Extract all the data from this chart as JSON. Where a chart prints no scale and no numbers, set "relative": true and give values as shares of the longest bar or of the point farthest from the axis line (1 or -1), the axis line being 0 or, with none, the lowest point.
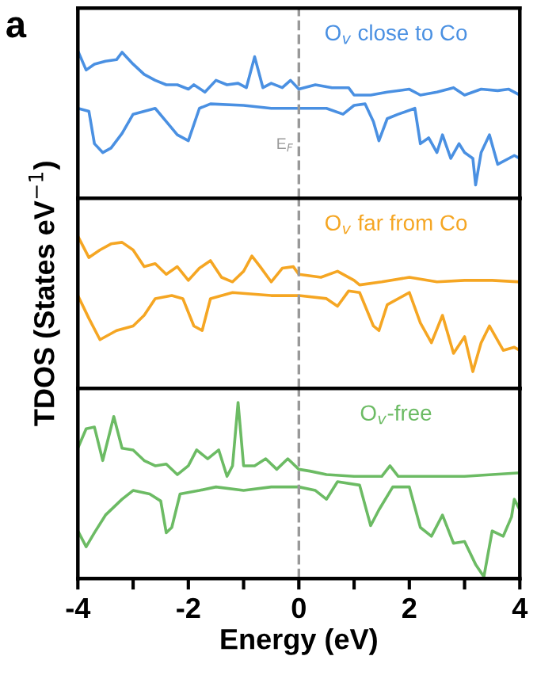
{
  "chart_data": [
    {
      "type": "line",
      "relative": true,
      "xlim": [
        -4,
        4
      ],
      "tick_labels": false,
      "annotations": [
        "a",
        "O$_{v}$ close to Co"
      ],
      "ref_lines": [
        {
          "axis": "x",
          "value": 0,
          "label": "E$_{F}$",
          "color": "#999999",
          "line_style": "dashed"
        }
      ],
      "series": [
        {
          "color": "#4a90e2",
          "x": [
            -4,
            -3.85,
            -3.7,
            -3.5,
            -3.3,
            -3.2,
            -3.0,
            -2.8,
            -2.6,
            -2.4,
            -2.2,
            -2.0,
            -1.9,
            -1.7,
            -1.5,
            -1.3,
            -1.1,
            -0.95,
            -0.8,
            -0.65,
            -0.5,
            -0.3,
            -0.15,
            0,
            0.3,
            0.6,
            0.9,
            1.0,
            1.3,
            1.6,
            2.0,
            2.2,
            2.5,
            2.8,
            3.0,
            3.3,
            3.6,
            3.8,
            4.0
          ],
          "values": [
            1.0,
            0.87,
            0.91,
            0.93,
            0.94,
            0.99,
            0.91,
            0.84,
            0.8,
            0.77,
            0.77,
            0.74,
            0.77,
            0.72,
            0.8,
            0.77,
            0.78,
            0.75,
            0.96,
            0.75,
            0.78,
            0.75,
            0.8,
            0.74,
            0.77,
            0.75,
            0.75,
            0.7,
            0.7,
            0.72,
            0.74,
            0.7,
            0.72,
            0.75,
            0.7,
            0.74,
            0.73,
            0.74,
            0.7
          ]
        },
        {
          "color": "#4a90e2",
          "x": [
            -4,
            -3.8,
            -3.7,
            -3.55,
            -3.4,
            -3.2,
            -3.0,
            -2.8,
            -2.6,
            -2.4,
            -2.2,
            -2.0,
            -1.8,
            -1.6,
            -1.0,
            -0.5,
            0,
            0.5,
            0.8,
            1.0,
            1.2,
            1.35,
            1.45,
            1.6,
            1.8,
            2.1,
            2.2,
            2.35,
            2.5,
            2.6,
            2.75,
            2.9,
            3.0,
            3.15,
            3.2,
            3.3,
            3.45,
            3.6,
            3.8,
            3.9,
            4.0
          ],
          "values": [
            0.61,
            0.59,
            0.37,
            0.31,
            0.34,
            0.44,
            0.57,
            0.59,
            0.61,
            0.52,
            0.43,
            0.39,
            0.61,
            0.64,
            0.63,
            0.61,
            0.61,
            0.61,
            0.57,
            0.63,
            0.64,
            0.52,
            0.39,
            0.54,
            0.57,
            0.61,
            0.37,
            0.41,
            0.31,
            0.43,
            0.27,
            0.37,
            0.31,
            0.27,
            0.09,
            0.31,
            0.43,
            0.23,
            0.27,
            0.29,
            0.27
          ]
        }
      ]
    },
    {
      "type": "line",
      "relative": true,
      "xlim": [
        -4,
        4
      ],
      "tick_labels": false,
      "ylabel": "TDOS (States eV$^{−1}$)",
      "annotations": [
        "O$_{v}$ far from Co"
      ],
      "ref_lines": [
        {
          "axis": "x",
          "value": 0,
          "color": "#999999",
          "line_style": "dashed"
        }
      ],
      "series": [
        {
          "color": "#f5a623",
          "x": [
            -4,
            -3.8,
            -3.6,
            -3.4,
            -3.2,
            -3.0,
            -2.8,
            -2.6,
            -2.4,
            -2.2,
            -2.0,
            -1.8,
            -1.6,
            -1.4,
            -1.2,
            -1.0,
            -0.85,
            -0.7,
            -0.5,
            -0.3,
            -0.1,
            0,
            0.4,
            0.7,
            1.0,
            1.1,
            1.5,
            2.0,
            2.5,
            3.0,
            3.5,
            4.0
          ],
          "values": [
            1.0,
            0.86,
            0.91,
            0.95,
            0.96,
            0.91,
            0.8,
            0.82,
            0.75,
            0.8,
            0.71,
            0.79,
            0.84,
            0.73,
            0.7,
            0.77,
            0.87,
            0.8,
            0.7,
            0.79,
            0.8,
            0.75,
            0.73,
            0.77,
            0.71,
            0.68,
            0.7,
            0.73,
            0.7,
            0.71,
            0.71,
            0.7
          ]
        },
        {
          "color": "#f5a623",
          "x": [
            -4,
            -3.8,
            -3.6,
            -3.3,
            -3.0,
            -2.8,
            -2.6,
            -2.3,
            -2.1,
            -1.9,
            -1.75,
            -1.6,
            -1.2,
            -0.5,
            0,
            0.5,
            0.7,
            0.9,
            1.1,
            1.35,
            1.45,
            1.6,
            2.0,
            2.2,
            2.4,
            2.6,
            2.8,
            3.0,
            3.15,
            3.3,
            3.45,
            3.7,
            3.9,
            4.0
          ],
          "values": [
            0.61,
            0.46,
            0.32,
            0.38,
            0.41,
            0.48,
            0.59,
            0.61,
            0.59,
            0.41,
            0.38,
            0.59,
            0.63,
            0.61,
            0.61,
            0.59,
            0.54,
            0.64,
            0.63,
            0.41,
            0.38,
            0.55,
            0.63,
            0.43,
            0.3,
            0.48,
            0.23,
            0.34,
            0.11,
            0.3,
            0.41,
            0.25,
            0.27,
            0.25
          ]
        }
      ]
    },
    {
      "type": "line",
      "relative": true,
      "xlim": [
        -4,
        4
      ],
      "xticks": [
        -4,
        {
          "value": -3,
          "label": null
        },
        -2,
        {
          "value": -1,
          "label": null
        },
        0,
        {
          "value": 1,
          "label": null
        },
        2,
        {
          "value": 3,
          "label": null
        },
        4
      ],
      "tick_labels": "x",
      "xlabel": "Energy (eV)",
      "annotations": [
        "O$_{v}$-free"
      ],
      "ref_lines": [
        {
          "axis": "x",
          "value": 0,
          "color": "#999999",
          "line_style": "dashed"
        }
      ],
      "series": [
        {
          "color": "#6cbb64",
          "x": [
            -4,
            -3.85,
            -3.7,
            -3.55,
            -3.35,
            -3.2,
            -3.0,
            -2.8,
            -2.6,
            -2.4,
            -2.2,
            -2.0,
            -1.85,
            -1.65,
            -1.45,
            -1.3,
            -1.2,
            -1.1,
            -1.0,
            -0.8,
            -0.6,
            -0.4,
            -0.2,
            0,
            0.2,
            0.5,
            1.0,
            1.5,
            1.65,
            1.8,
            2.5,
            3.0,
            3.5,
            4.0
          ],
          "values": [
            0.74,
            0.85,
            0.86,
            0.67,
            0.92,
            0.74,
            0.73,
            0.67,
            0.64,
            0.65,
            0.59,
            0.64,
            0.73,
            0.68,
            0.73,
            0.58,
            0.64,
            1.0,
            0.64,
            0.64,
            0.68,
            0.62,
            0.68,
            0.62,
            0.61,
            0.59,
            0.58,
            0.58,
            0.64,
            0.58,
            0.58,
            0.58,
            0.59,
            0.6
          ]
        },
        {
          "color": "#6cbb64",
          "x": [
            -4,
            -3.85,
            -3.7,
            -3.5,
            -3.2,
            -3.0,
            -2.7,
            -2.5,
            -2.4,
            -2.3,
            -2.15,
            -1.8,
            -1.5,
            -1.0,
            -0.5,
            0,
            0.3,
            0.5,
            0.7,
            1.1,
            1.3,
            1.45,
            1.7,
            2.0,
            2.2,
            2.4,
            2.6,
            2.8,
            3.0,
            3.2,
            3.35,
            3.5,
            3.7,
            3.85,
            3.9,
            4.0
          ],
          "values": [
            0.27,
            0.18,
            0.26,
            0.36,
            0.45,
            0.5,
            0.48,
            0.44,
            0.26,
            0.29,
            0.48,
            0.5,
            0.52,
            0.5,
            0.52,
            0.52,
            0.5,
            0.45,
            0.55,
            0.53,
            0.3,
            0.39,
            0.52,
            0.52,
            0.29,
            0.24,
            0.36,
            0.2,
            0.21,
            0.08,
            0.01,
            0.27,
            0.24,
            0.35,
            0.45,
            0.39
          ]
        }
      ]
    }
  ]
}
